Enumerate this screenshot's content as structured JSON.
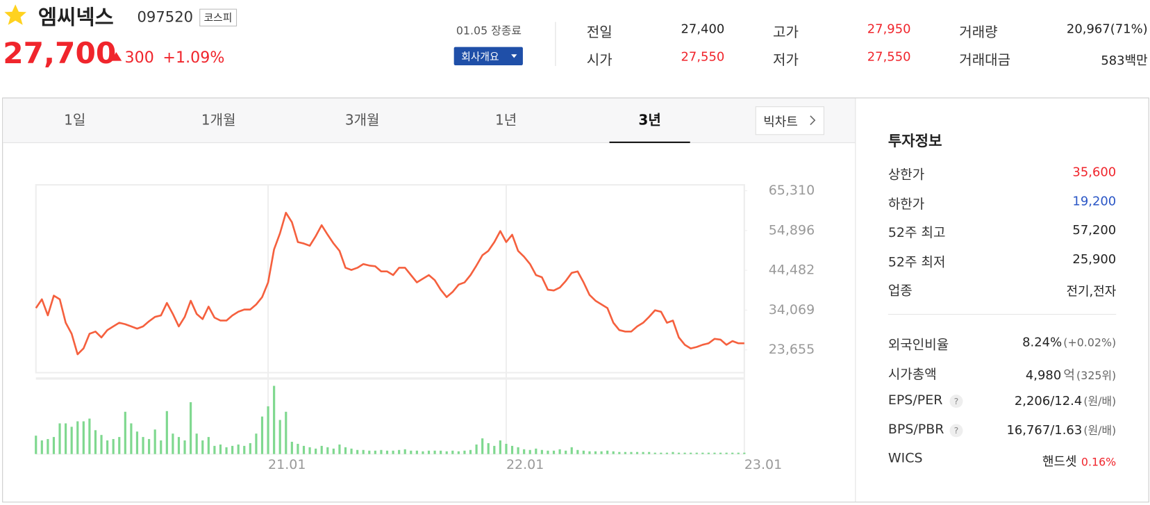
{
  "header": {
    "name": "엠씨넥스",
    "code": "097520",
    "market": "코스피",
    "price": "27,700",
    "change": "300",
    "change_pct": "+1.09%",
    "status": "01.05 장종료",
    "company_button": "회사개요"
  },
  "summary": [
    {
      "label": "전일",
      "value": "27,400"
    },
    {
      "label": "고가",
      "value": "27,950",
      "color": "#f0252c"
    },
    {
      "label": "거래량",
      "value": "20,967(71%)"
    },
    {
      "label": "시가",
      "value": "27,550",
      "color": "#f0252c"
    },
    {
      "label": "저가",
      "value": "27,550",
      "color": "#f0252c"
    },
    {
      "label": "거래대금",
      "value": "583백만"
    }
  ],
  "tabs": [
    "1일",
    "1개월",
    "3개월",
    "1년",
    "3년"
  ],
  "active_tab": 4,
  "big_chart_button": "빅차트",
  "chart": {
    "type": "line",
    "color": "#f5603e",
    "values": [
      34600,
      36900,
      32700,
      37860,
      36900,
      30760,
      27880,
      22500,
      24040,
      27880,
      28450,
      26920,
      28840,
      29800,
      30760,
      30380,
      29800,
      29220,
      29800,
      31140,
      32290,
      32680,
      35940,
      33060,
      29800,
      32290,
      36520,
      33060,
      31720,
      34980,
      32100,
      31330,
      31330,
      32680,
      33640,
      34210,
      34210,
      35560,
      37480,
      41320,
      49960,
      54180,
      59560,
      57060,
      51880,
      51500,
      50920,
      53420,
      56300,
      53800,
      51500,
      49580,
      45160,
      44580,
      45160,
      46120,
      45740,
      45540,
      44200,
      44200,
      43240,
      45160,
      45160,
      43240,
      41320,
      42280,
      43240,
      41900,
      39400,
      37480,
      38820,
      40740,
      41320,
      43240,
      45740,
      48420,
      49580,
      51880,
      54760,
      51880,
      53800,
      49580,
      48040,
      46120,
      43240,
      42660,
      39400,
      39210,
      39980,
      41700,
      43810,
      44200,
      41320,
      38050,
      36520,
      35560,
      34600,
      30760,
      28840,
      28450,
      28450,
      29800,
      30760,
      32290,
      34020,
      33640,
      30760,
      31330,
      26920,
      25000,
      24040,
      24420,
      25000,
      25380,
      26530,
      26340,
      25000,
      25960,
      25380,
      25380
    ],
    "xlim": [
      0,
      119
    ],
    "xticks": [
      {
        "value": 39,
        "label": "21.01"
      },
      {
        "value": 79,
        "label": "22.01"
      },
      {
        "value": 119,
        "label": "23.01"
      }
    ],
    "ylim": [
      17700,
      66850
    ],
    "yticks": [
      {
        "value": 65310,
        "label": "65,310"
      },
      {
        "value": 54896,
        "label": "54,896"
      },
      {
        "value": 44482,
        "label": "44,482"
      },
      {
        "value": 34069,
        "label": "34,069"
      },
      {
        "value": 23655,
        "label": "23,655"
      }
    ],
    "volume": {
      "color": "#7fd88f",
      "vlim": [
        0,
        100
      ],
      "values": [
        27,
        20,
        22,
        25,
        45,
        45,
        40,
        48,
        48,
        52,
        35,
        28,
        20,
        22,
        25,
        62,
        45,
        33,
        25,
        22,
        36,
        20,
        63,
        30,
        25,
        20,
        76,
        30,
        20,
        25,
        12,
        14,
        10,
        12,
        14,
        12,
        16,
        30,
        55,
        70,
        100,
        50,
        62,
        18,
        15,
        12,
        10,
        8,
        12,
        10,
        8,
        14,
        10,
        8,
        6,
        6,
        5,
        5,
        6,
        5,
        5,
        6,
        7,
        5,
        5,
        4,
        5,
        5,
        5,
        4,
        5,
        4,
        5,
        6,
        14,
        23,
        16,
        12,
        20,
        15,
        12,
        10,
        7,
        6,
        8,
        6,
        5,
        5,
        7,
        5,
        10,
        6,
        5,
        4,
        4,
        4,
        5,
        4,
        3,
        3,
        3,
        3,
        3,
        3,
        2,
        2,
        2,
        3,
        2,
        2,
        2,
        2,
        2,
        2,
        2,
        2,
        2,
        2,
        2,
        2
      ]
    }
  },
  "invest": {
    "title": "투자정보",
    "rows": [
      {
        "label": "상한가",
        "value": "35,600",
        "color": "#f0252c"
      },
      {
        "label": "하한가",
        "value": "19,200",
        "color": "#2a56c6"
      },
      {
        "label": "52주 최고",
        "value": "57,200"
      },
      {
        "label": "52주 최저",
        "value": "25,900"
      },
      {
        "label": "업종",
        "value": "전기,전자"
      }
    ],
    "rows2": [
      {
        "label": "외국인비율",
        "value": "8.24%",
        "note": "(+0.02%)"
      },
      {
        "label": "시가총액",
        "value": "4,980",
        "unit": "억",
        "note": "(325위)"
      },
      {
        "label": "EPS/PER",
        "help": "?",
        "value": "2,206/12.4",
        "note": "(원/배)"
      },
      {
        "label": "BPS/PBR",
        "help": "?",
        "value": "16,767/1.63",
        "note": "(원/배)"
      },
      {
        "label": "WICS",
        "value": "핸드셋",
        "note": "0.16%",
        "note_color": "#f0252c"
      }
    ]
  }
}
